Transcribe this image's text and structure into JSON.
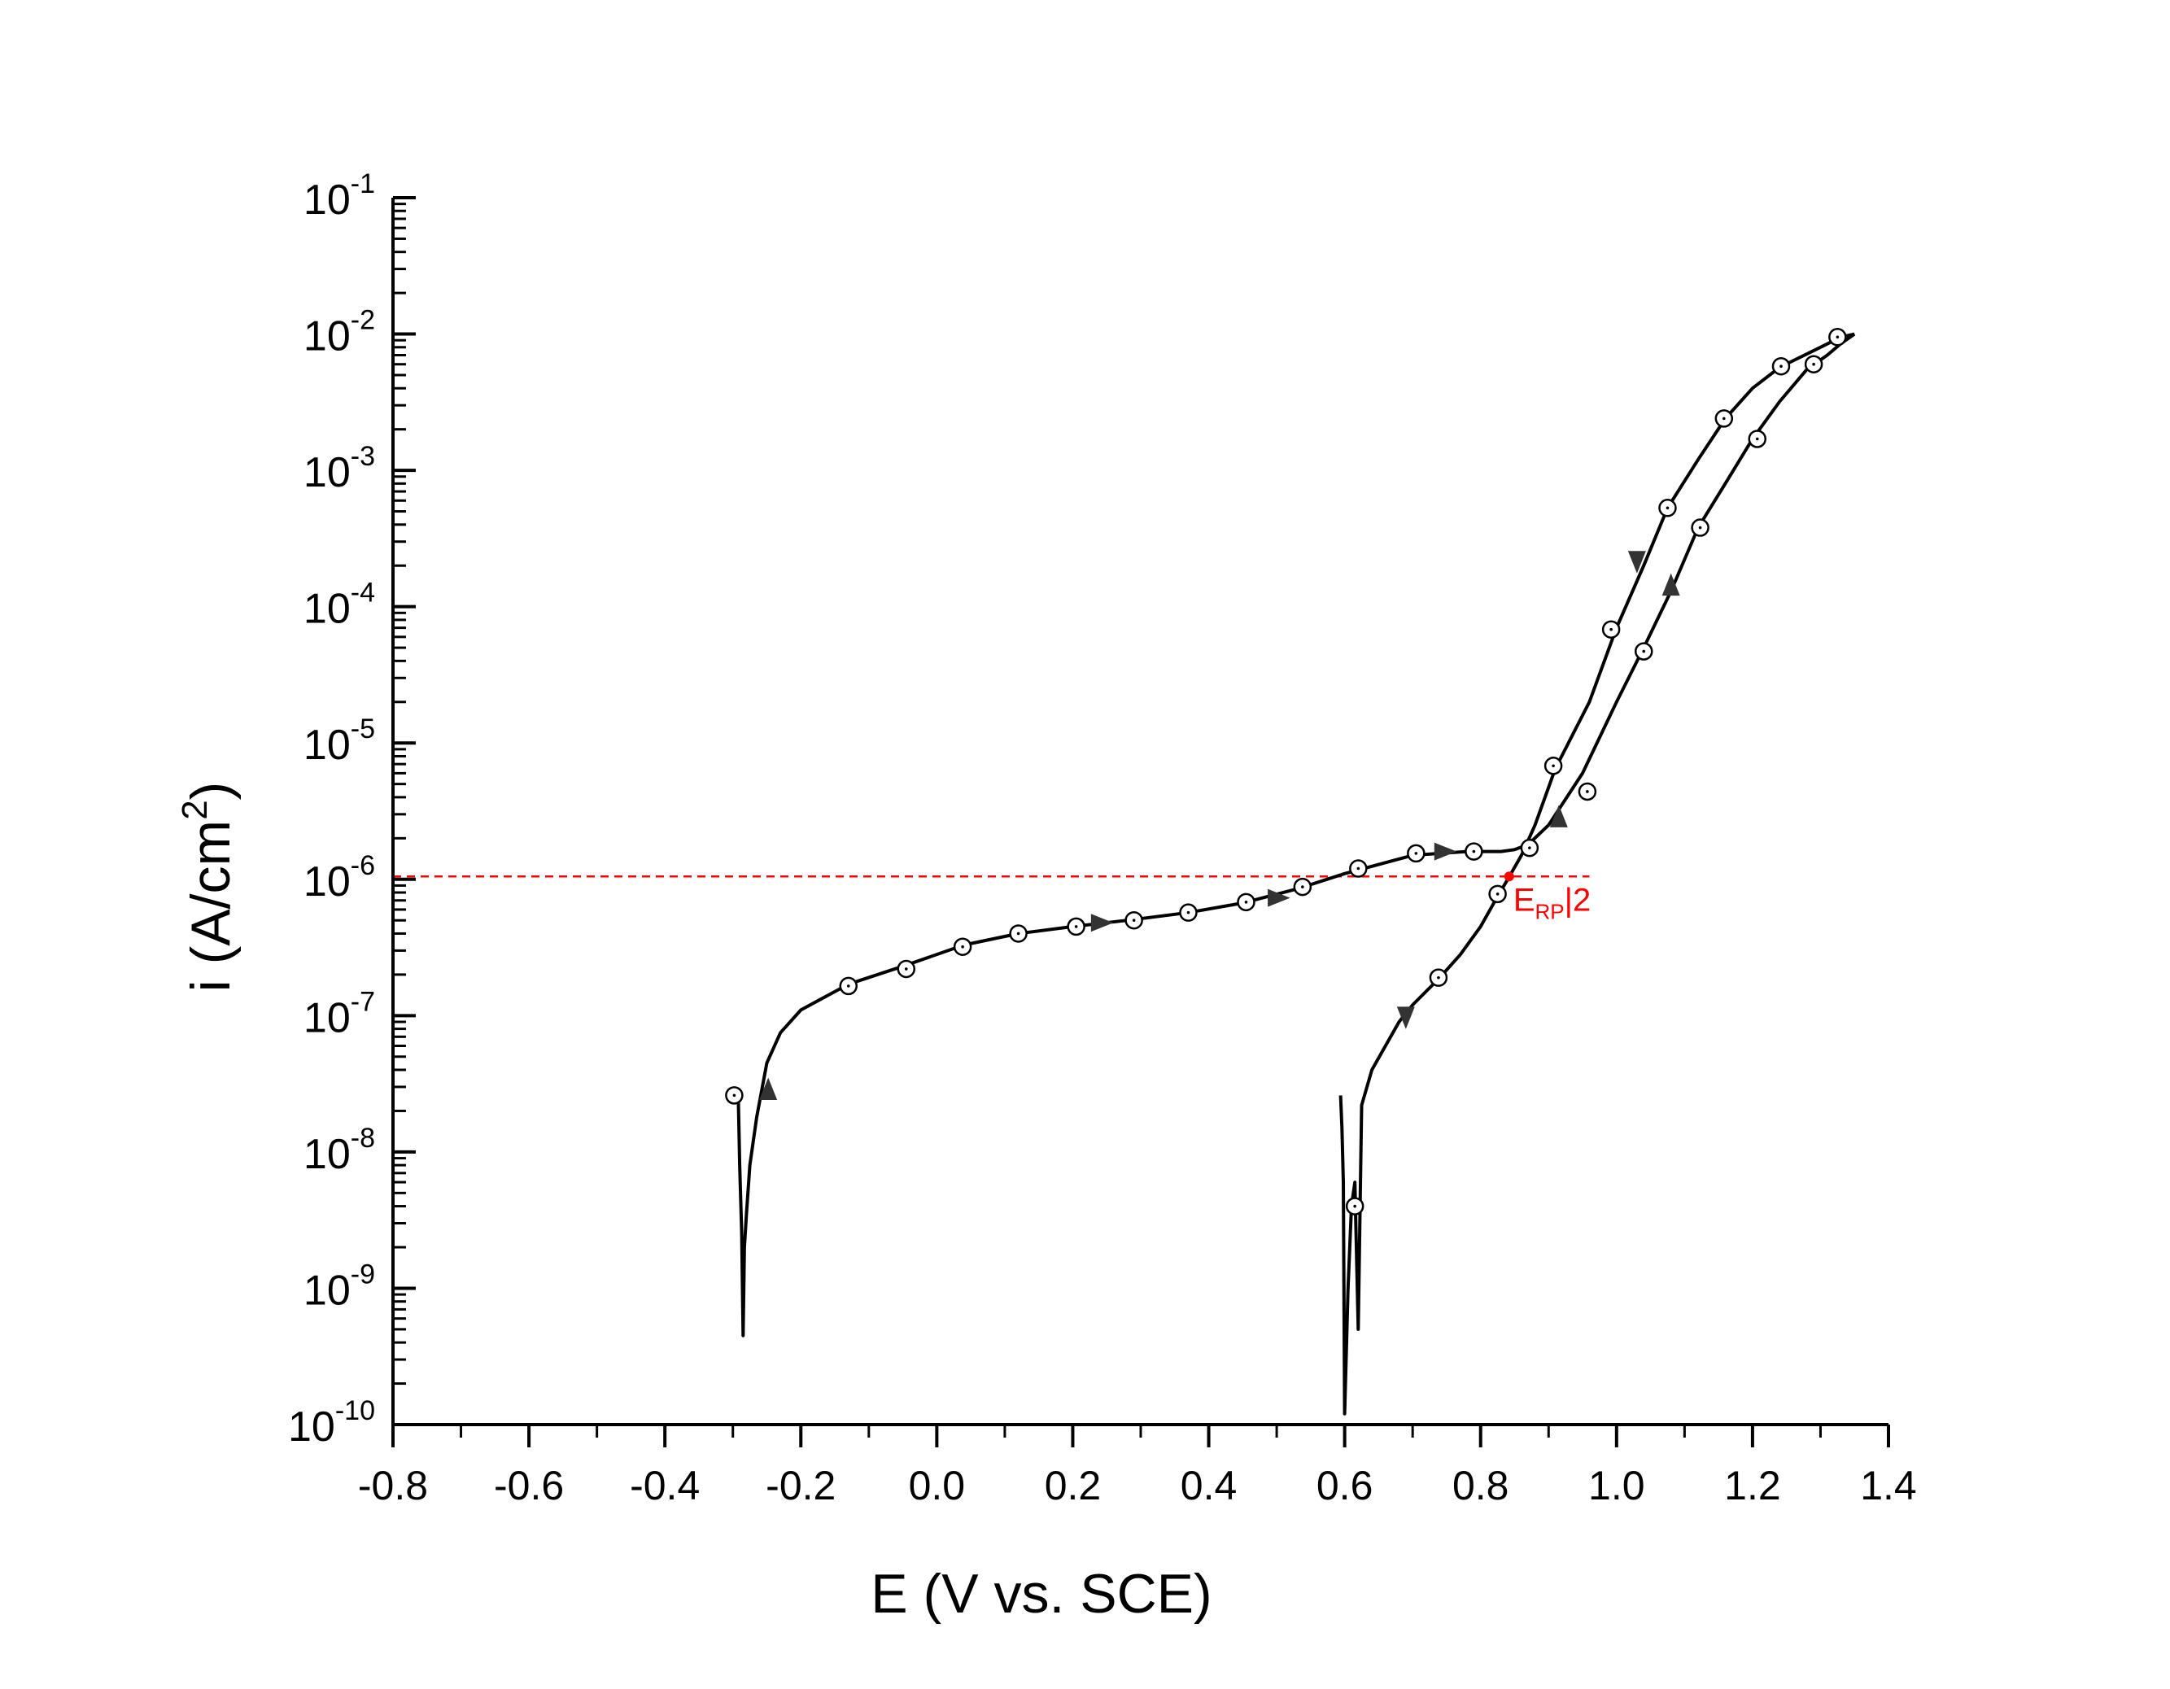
{
  "chart_data": {
    "type": "line",
    "xlabel": "E (V vs. SCE)",
    "ylabel": "i (A/cm2)",
    "ylabel_parts": {
      "main": "i (A/cm",
      "sup": "2",
      "tail": ")"
    },
    "xlim": [
      -0.8,
      1.4
    ],
    "ylim": [
      1e-10,
      0.1
    ],
    "yscale": "log",
    "grid": false,
    "xticks": [
      "-0.8",
      "-0.6",
      "-0.4",
      "-0.2",
      "0.0",
      "0.2",
      "0.4",
      "0.6",
      "0.8",
      "1.0",
      "1.2",
      "1.4"
    ],
    "xtick_values": [
      -0.8,
      -0.6,
      -0.4,
      -0.2,
      0.0,
      0.2,
      0.4,
      0.6,
      0.8,
      1.0,
      1.2,
      1.4
    ],
    "yticks": [
      {
        "base": "10",
        "exp": "-10",
        "value": 1e-10
      },
      {
        "base": "10",
        "exp": "-9",
        "value": 1e-09
      },
      {
        "base": "10",
        "exp": "-8",
        "value": 1e-08
      },
      {
        "base": "10",
        "exp": "-7",
        "value": 1e-07
      },
      {
        "base": "10",
        "exp": "-6",
        "value": 1e-06
      },
      {
        "base": "10",
        "exp": "-5",
        "value": 1e-05
      },
      {
        "base": "10",
        "exp": "-4",
        "value": 0.0001
      },
      {
        "base": "10",
        "exp": "-3",
        "value": 0.001
      },
      {
        "base": "10",
        "exp": "-2",
        "value": 0.01
      },
      {
        "base": "10",
        "exp": "-1",
        "value": 0.1
      }
    ],
    "series": [
      {
        "x": [
          -0.298,
          -0.292,
          -0.29,
          -0.287,
          -0.285,
          -0.283,
          -0.28,
          -0.275,
          -0.265,
          -0.25,
          -0.23,
          -0.2,
          -0.13,
          -0.05,
          0.04,
          0.12,
          0.2,
          0.28,
          0.37,
          0.45,
          0.53,
          0.6,
          0.7,
          0.78,
          0.83,
          0.85,
          0.87,
          0.9,
          0.95,
          1.0,
          1.04,
          1.08,
          1.12,
          1.16,
          1.2,
          1.24,
          1.28,
          1.31,
          1.33,
          1.35
        ],
        "y": [
          2.6e-08,
          2.5e-08,
          8e-09,
          2.5e-09,
          4.5e-10,
          2e-09,
          3.5e-09,
          8e-09,
          1.8e-08,
          4.5e-08,
          7.5e-08,
          1.1e-07,
          1.7e-07,
          2.3e-07,
          3.3e-07,
          4e-07,
          4.5e-07,
          5e-07,
          5.7e-07,
          6.7e-07,
          8.5e-07,
          1.1e-06,
          1.5e-06,
          1.6e-06,
          1.6e-06,
          1.65e-06,
          1.8e-06,
          2.5e-06,
          6e-06,
          2e-05,
          5e-05,
          0.00013,
          0.00038,
          0.0008,
          0.0017,
          0.0032,
          0.0055,
          0.007,
          0.0085,
          0.01
        ]
      },
      {
        "x": [
          1.35,
          1.33,
          1.3,
          1.24,
          1.2,
          1.16,
          1.12,
          1.075,
          1.04,
          1.0,
          0.96,
          0.91,
          0.88,
          0.86,
          0.84,
          0.825,
          0.8,
          0.77,
          0.74,
          0.7,
          0.68,
          0.66,
          0.64,
          0.625,
          0.62,
          0.615,
          0.61,
          0.605,
          0.6,
          0.598,
          0.596,
          0.594
        ],
        "y": [
          0.01,
          0.0095,
          0.008,
          0.0057,
          0.004,
          0.0024,
          0.0012,
          0.00053,
          0.0002,
          7e-05,
          2e-05,
          6.5e-06,
          2.5e-06,
          1.5e-06,
          1e-06,
          7.5e-07,
          4.5e-07,
          2.8e-07,
          1.9e-07,
          1.2e-07,
          9e-08,
          6e-08,
          4e-08,
          2.2e-08,
          5e-10,
          6e-09,
          4e-09,
          1e-09,
          1.2e-10,
          6e-09,
          1.5e-08,
          2.6e-08
        ]
      }
    ],
    "markers": [
      {
        "x": -0.298,
        "y": 2.6e-08
      },
      {
        "x": -0.13,
        "y": 1.65e-07
      },
      {
        "x": -0.045,
        "y": 2.2e-07
      },
      {
        "x": 0.038,
        "y": 3.2e-07
      },
      {
        "x": 0.12,
        "y": 4e-07
      },
      {
        "x": 0.205,
        "y": 4.5e-07
      },
      {
        "x": 0.29,
        "y": 5e-07
      },
      {
        "x": 0.37,
        "y": 5.7e-07
      },
      {
        "x": 0.455,
        "y": 6.8e-07
      },
      {
        "x": 0.538,
        "y": 8.8e-07
      },
      {
        "x": 0.62,
        "y": 1.2e-06
      },
      {
        "x": 0.705,
        "y": 1.55e-06
      },
      {
        "x": 0.79,
        "y": 1.6e-06
      },
      {
        "x": 0.872,
        "y": 1.7e-06
      },
      {
        "x": 0.957,
        "y": 4.4e-06
      },
      {
        "x": 1.04,
        "y": 4.7e-05
      },
      {
        "x": 1.123,
        "y": 0.00038
      },
      {
        "x": 1.207,
        "y": 0.0017
      },
      {
        "x": 1.29,
        "y": 0.006
      },
      {
        "x": 1.325,
        "y": 0.0095
      },
      {
        "x": 1.242,
        "y": 0.0058
      },
      {
        "x": 1.158,
        "y": 0.0024
      },
      {
        "x": 1.075,
        "y": 0.00053
      },
      {
        "x": 0.992,
        "y": 6.8e-05
      },
      {
        "x": 0.907,
        "y": 6.8e-06
      },
      {
        "x": 0.825,
        "y": 7.8e-07
      },
      {
        "x": 0.738,
        "y": 1.9e-07
      },
      {
        "x": 0.615,
        "y": 4e-09
      }
    ],
    "arrows": [
      {
        "x": -0.248,
        "y": 2.8e-08,
        "dir": "up"
      },
      {
        "x": 0.24,
        "y": 4.8e-07,
        "dir": "right"
      },
      {
        "x": 0.5,
        "y": 7.3e-07,
        "dir": "right"
      },
      {
        "x": 0.745,
        "y": 1.6e-06,
        "dir": "right"
      },
      {
        "x": 0.915,
        "y": 2.8e-06,
        "dir": "up"
      },
      {
        "x": 1.08,
        "y": 0.00014,
        "dir": "up"
      },
      {
        "x": 1.03,
        "y": 0.00022,
        "dir": "down"
      },
      {
        "x": 0.69,
        "y": 1e-07,
        "dir": "down"
      }
    ],
    "reference_line": {
      "y": 1.05e-06,
      "x_start": -0.8,
      "x_end": 0.96,
      "color": "#ff0000",
      "style": "dashed"
    },
    "reference_point": {
      "x": 0.842,
      "y": 1.05e-06,
      "color": "#ff0000"
    },
    "annotation": {
      "main": "E",
      "sub": "RP",
      "tail": "|2",
      "x": 0.848,
      "y": 7.5e-07,
      "color": "#ff0000"
    }
  }
}
